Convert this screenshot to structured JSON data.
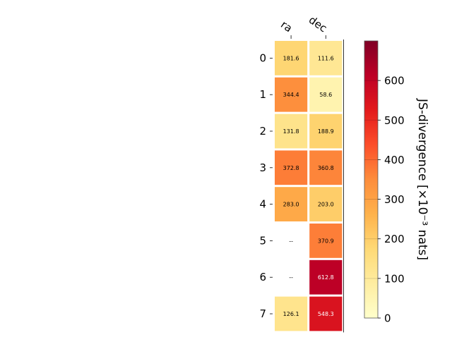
{
  "chart_data": {
    "type": "heatmap",
    "columns": [
      "ra",
      "dec"
    ],
    "rows": [
      "0",
      "1",
      "2",
      "3",
      "4",
      "5",
      "6",
      "7"
    ],
    "values": [
      [
        181.6,
        111.6
      ],
      [
        344.4,
        58.6
      ],
      [
        131.8,
        188.9
      ],
      [
        372.8,
        360.8
      ],
      [
        283.0,
        203.0
      ],
      [
        null,
        370.9
      ],
      [
        null,
        612.8
      ],
      [
        126.1,
        548.3
      ]
    ],
    "missing_label": "--",
    "colorbar": {
      "label": "JS-divergence [×10⁻³ nats]",
      "min": 0,
      "max": 700,
      "ticks": [
        0,
        100,
        200,
        300,
        400,
        500,
        600
      ],
      "colormap": "YlOrRd",
      "stops": [
        "#ffffcc",
        "#ffeda0",
        "#fed976",
        "#feb24c",
        "#fd8d3c",
        "#fc4e2a",
        "#e31a1c",
        "#bd0026",
        "#800026"
      ]
    }
  }
}
